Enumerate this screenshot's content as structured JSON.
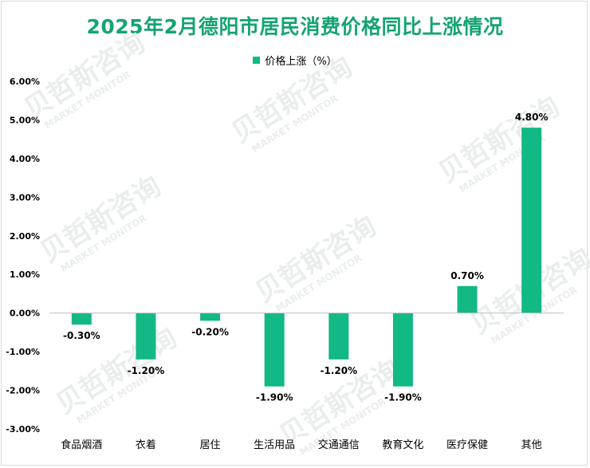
{
  "chart_data": {
    "type": "bar",
    "title": "2025年2月德阳市居民消费价格同比上涨情况",
    "categories": [
      "食品烟酒",
      "衣着",
      "居住",
      "生活用品",
      "交通通信",
      "教育文化",
      "医疗保健",
      "其他"
    ],
    "series": [
      {
        "name": "价格上涨（%）",
        "values": [
          -0.3,
          -1.2,
          -0.2,
          -1.9,
          -1.2,
          -1.9,
          0.7,
          4.8
        ],
        "data_labels": [
          "-0.30%",
          "-1.20%",
          "-0.20%",
          "-1.90%",
          "-1.20%",
          "-1.90%",
          "0.70%",
          "4.80%"
        ]
      }
    ],
    "y_ticks": [
      "6.00%",
      "5.00%",
      "4.00%",
      "3.00%",
      "2.00%",
      "1.00%",
      "0.00%",
      "-1.00%",
      "-2.00%",
      "-3.00%"
    ],
    "ylim": [
      -3,
      6
    ],
    "grid": false,
    "legend_position": "top-center",
    "bar_color": "#12b886",
    "title_color": "#14a374"
  },
  "watermark": {
    "brand": "贝哲斯咨询",
    "brand_en": "MARKET MONITOR"
  }
}
